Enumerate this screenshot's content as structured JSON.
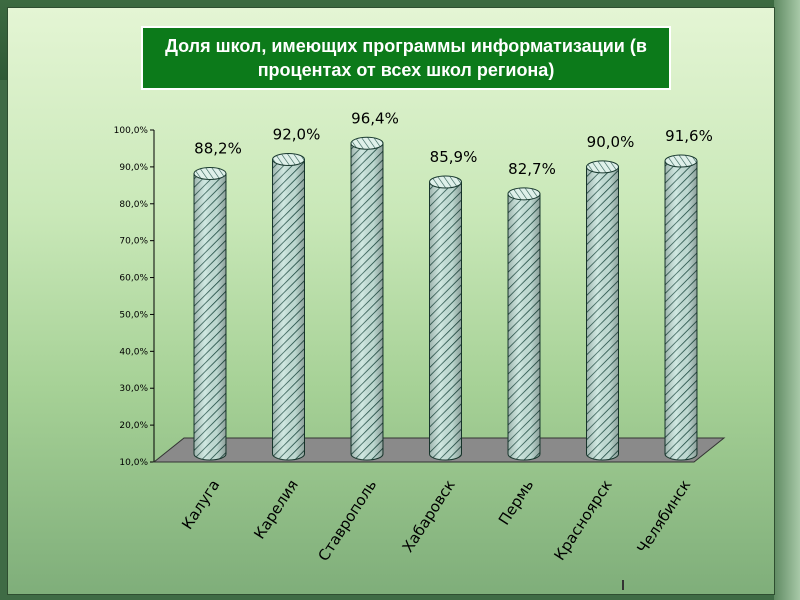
{
  "title": "Доля школ, имеющих программы информатизации (в процентах от всех школ региона)",
  "colors": {
    "title_bg": "#0c7a1a",
    "bar_fill": "#c8e4dc",
    "bar_hatch": "#1a4a40",
    "floor": "#8a8a8a"
  },
  "chart_data": {
    "type": "bar",
    "categories": [
      "Калуга",
      "Карелия",
      "Ставрополь",
      "Хабаровск",
      "Пермь",
      "Красноярск",
      "Челябинск"
    ],
    "values": [
      88.2,
      92.0,
      96.4,
      85.9,
      82.7,
      90.0,
      91.6
    ],
    "data_labels": [
      "88,2%",
      "92,0%",
      "96,4%",
      "85,9%",
      "82,7%",
      "90,0%",
      "91,6%"
    ],
    "y_ticks": [
      "10,0%",
      "20,0%",
      "30,0%",
      "40,0%",
      "50,0%",
      "60,0%",
      "70,0%",
      "80,0%",
      "90,0%",
      "100,0%"
    ],
    "ylim": [
      10,
      100
    ],
    "title": "Доля школ, имеющих программы информатизации (в процентах от всех школ региона)",
    "xlabel": "",
    "ylabel": "",
    "grid": false,
    "legend": "none",
    "style": "3d-cylinder"
  }
}
